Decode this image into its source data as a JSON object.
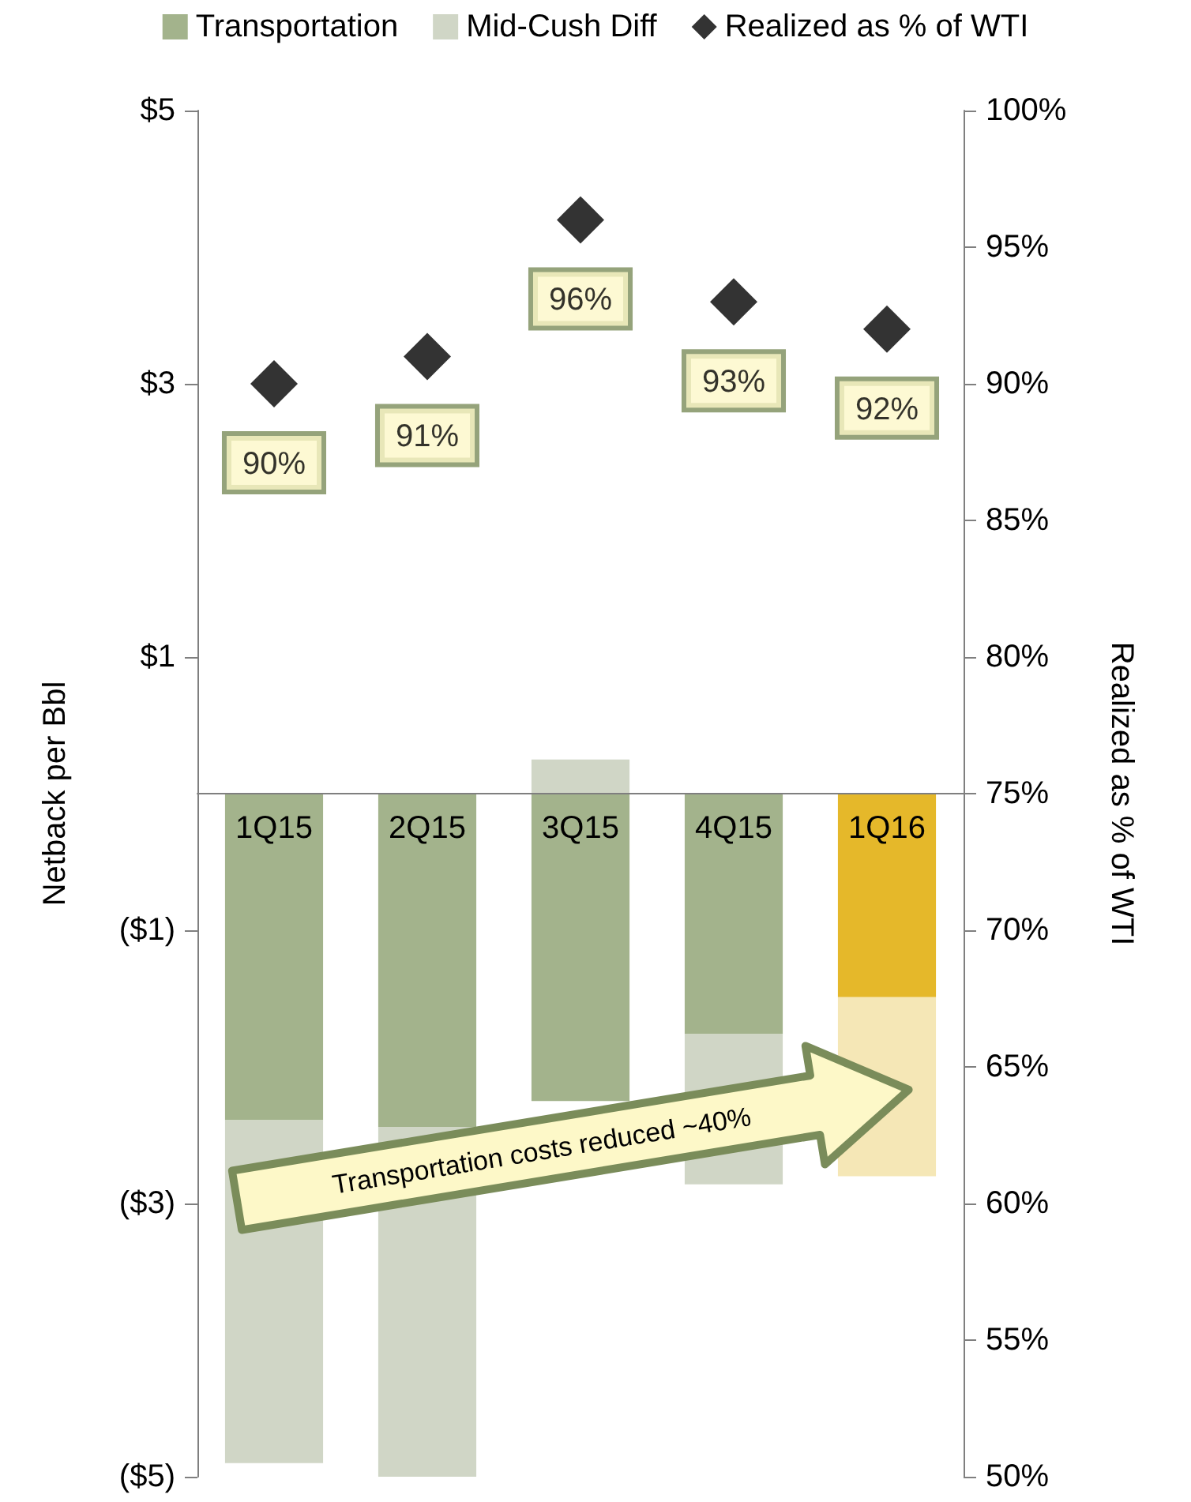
{
  "chart_data": {
    "type": "bar",
    "stacked": true,
    "categories": [
      "1Q15",
      "2Q15",
      "3Q15",
      "4Q15",
      "1Q16"
    ],
    "series": [
      {
        "name": "Transportation",
        "color": "#a3b38c",
        "colors": [
          "#a3b38c",
          "#a3b38c",
          "#a3b38c",
          "#a3b38c",
          "#e5b82a"
        ],
        "values": [
          -2.39,
          -2.44,
          -2.25,
          -1.76,
          -1.49
        ]
      },
      {
        "name": "Mid-Cush Diff",
        "color": "#d0d6c6",
        "colors": [
          "#d0d6c6",
          "#d0d6c6",
          "#d0d6c6",
          "#d0d6c6",
          "#f5e7b6"
        ],
        "values": [
          -2.51,
          -2.65,
          0.25,
          -1.1,
          -1.31
        ]
      },
      {
        "name": "Realized as % of WTI",
        "type": "scatter",
        "axis": "y2",
        "marker": "diamond",
        "color": "#000000",
        "values": [
          90,
          91,
          96,
          93,
          92
        ],
        "value_labels": [
          "90%",
          "91%",
          "96%",
          "93%",
          "92%"
        ]
      }
    ],
    "ylabel": "Netback per Bbl",
    "y2label": "Realized as % of WTI",
    "ylim": [
      -5,
      5
    ],
    "yticks": [
      {
        "value": -5,
        "label": "($5)"
      },
      {
        "value": -3,
        "label": "($3)"
      },
      {
        "value": -1,
        "label": "($1)"
      },
      {
        "value": 1,
        "label": "$1"
      },
      {
        "value": 3,
        "label": "$3"
      },
      {
        "value": 5,
        "label": "$5"
      }
    ],
    "y2lim": [
      50,
      100
    ],
    "y2ticks": [
      {
        "value": 50,
        "label": "50%"
      },
      {
        "value": 55,
        "label": "55%"
      },
      {
        "value": 60,
        "label": "60%"
      },
      {
        "value": 65,
        "label": "65%"
      },
      {
        "value": 70,
        "label": "70%"
      },
      {
        "value": 75,
        "label": "75%"
      },
      {
        "value": 80,
        "label": "80%"
      },
      {
        "value": 85,
        "label": "85%"
      },
      {
        "value": 90,
        "label": "90%"
      },
      {
        "value": 95,
        "label": "95%"
      },
      {
        "value": 100,
        "label": "100%"
      }
    ],
    "annotations": [
      "Transportation costs reduced ~40%"
    ],
    "legend": "top",
    "grid": false
  }
}
